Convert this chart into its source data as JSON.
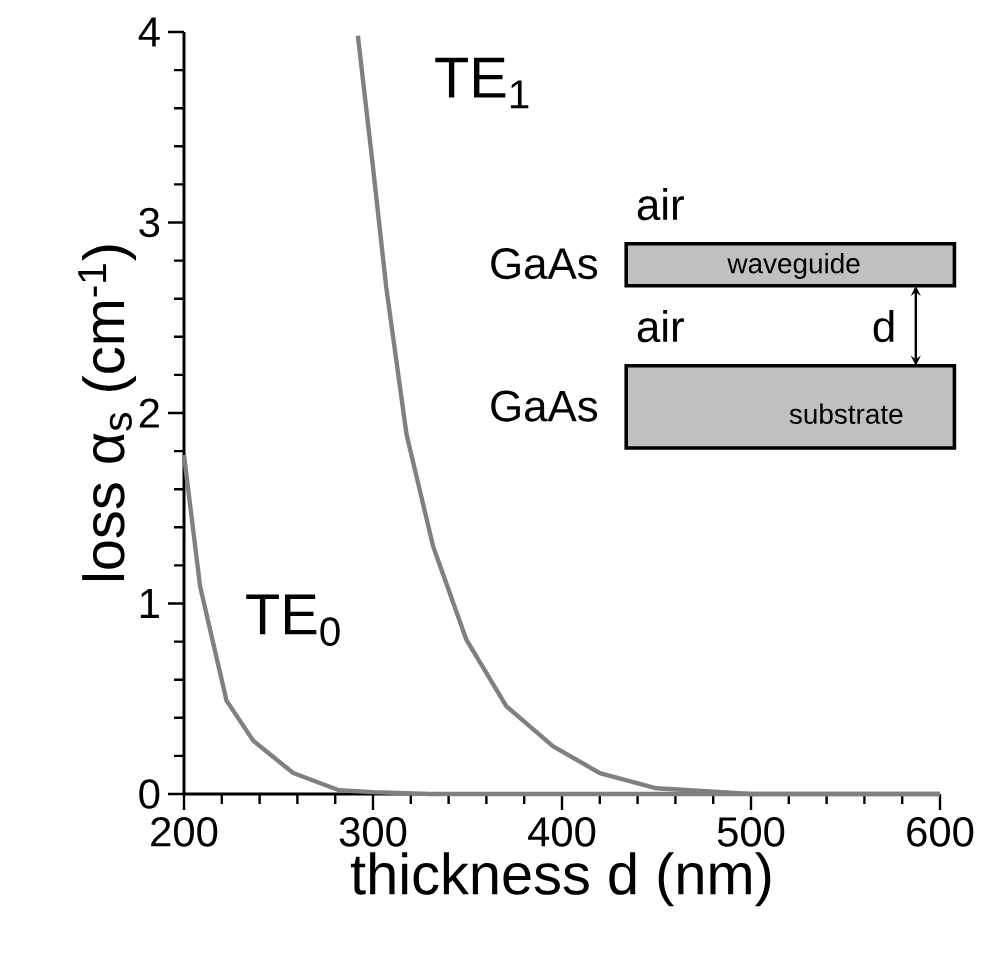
{
  "chart_data": {
    "type": "line",
    "xlabel": "thickness d  (nm)",
    "ylabel": "loss α$_{s}$ (cm$^{-1}$)",
    "series": [
      {
        "name": "TE$_{0}$",
        "color": "#808080",
        "x": [
          200,
          208.5,
          222.5,
          236.6,
          257.8,
          282,
          300,
          330,
          360,
          400,
          450,
          500,
          600
        ],
        "values": [
          1.78,
          1.09,
          0.49,
          0.28,
          0.11,
          0.02,
          0.01,
          0,
          0,
          0,
          0,
          0,
          0
        ]
      },
      {
        "name": "TE$_{1}$",
        "color": "#808080",
        "x": [
          292,
          300,
          307,
          317.7,
          331.8,
          349.4,
          370.6,
          395.3,
          420,
          450,
          500,
          600
        ],
        "values": [
          3.98,
          3.29,
          2.66,
          1.89,
          1.3,
          0.81,
          0.46,
          0.25,
          0.11,
          0.03,
          0,
          0
        ]
      }
    ],
    "xlim": [
      200,
      600
    ],
    "ylim": [
      0,
      4
    ],
    "xticks": [
      200,
      300,
      400,
      500,
      600
    ],
    "yticks": [
      0,
      1,
      2,
      3,
      4
    ],
    "grid": false,
    "legend": false,
    "marker": "none",
    "line_style": "solid",
    "annotations": [
      "air",
      "GaAs",
      "waveguide",
      "air",
      "d",
      "GaAs",
      "substrate"
    ]
  }
}
